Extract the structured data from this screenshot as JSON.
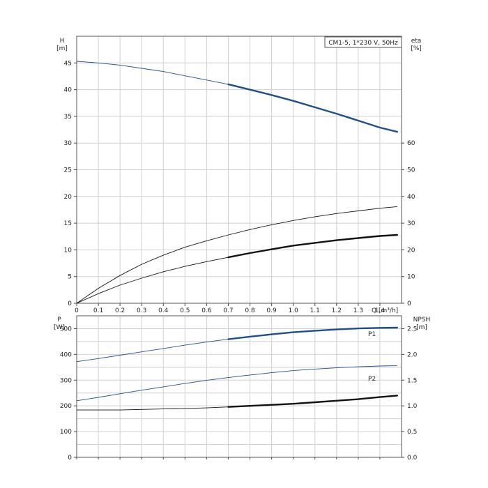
{
  "chart_data": [
    {
      "type": "line",
      "model_label": "CM1-5, 1*230 V, 50Hz",
      "ylabel_left": "H",
      "ylabel_left_unit": "[m]",
      "ylabel_right": "eta",
      "ylabel_right_unit": "[%]",
      "xlabel": "Q [m³/h]",
      "xlim": [
        0,
        1.5
      ],
      "ylim_left": [
        0,
        50
      ],
      "ylim_right": [
        0,
        100
      ],
      "x_ticks": [
        "0",
        "0.1",
        "0.2",
        "0.3",
        "0.4",
        "0.5",
        "0.6",
        "0.7",
        "0.8",
        "0.9",
        "1.0",
        "1.1",
        "1.2",
        "1.3",
        "1.4"
      ],
      "y_left_ticks": [
        "0",
        "5",
        "10",
        "15",
        "20",
        "25",
        "30",
        "35",
        "40",
        "45"
      ],
      "y_right_ticks": [
        "0",
        "10",
        "20",
        "30",
        "40",
        "50",
        "60"
      ],
      "grid": true,
      "series": [
        {
          "axis": "left",
          "color": "#1f4e8c",
          "x": [
            0,
            0.1,
            0.2,
            0.3,
            0.4,
            0.5,
            0.6,
            0.7,
            0.8,
            0.9,
            1.0,
            1.1,
            1.2,
            1.3,
            1.4,
            1.48
          ],
          "y": [
            45.3,
            45.0,
            44.6,
            44.0,
            43.4,
            42.6,
            41.8,
            41.0,
            40.0,
            39.0,
            37.9,
            36.7,
            35.5,
            34.2,
            32.9,
            32.1
          ],
          "bold_from": 0.7
        },
        {
          "axis": "left",
          "color": "#111111",
          "x": [
            0,
            0.1,
            0.2,
            0.3,
            0.4,
            0.5,
            0.6,
            0.7,
            0.8,
            0.9,
            1.0,
            1.1,
            1.2,
            1.3,
            1.4,
            1.48
          ],
          "y": [
            0,
            2.8,
            5.2,
            7.3,
            9.0,
            10.5,
            11.7,
            12.8,
            13.8,
            14.7,
            15.5,
            16.2,
            16.8,
            17.3,
            17.8,
            18.1
          ],
          "bold_from": null
        },
        {
          "axis": "left",
          "color": "#111111",
          "x": [
            0,
            0.1,
            0.2,
            0.3,
            0.4,
            0.5,
            0.6,
            0.7,
            0.8,
            0.9,
            1.0,
            1.1,
            1.2,
            1.3,
            1.4,
            1.48
          ],
          "y": [
            0,
            1.8,
            3.4,
            4.7,
            5.9,
            6.9,
            7.8,
            8.6,
            9.4,
            10.1,
            10.8,
            11.3,
            11.8,
            12.2,
            12.6,
            12.8
          ],
          "bold_from": 0.7
        }
      ]
    },
    {
      "type": "line",
      "ylabel_left": "P",
      "ylabel_left_unit": "[W]",
      "ylabel_right": "NPSH",
      "ylabel_right_unit": "[m]",
      "xlim": [
        0,
        1.5
      ],
      "ylim_left": [
        0,
        550
      ],
      "ylim_right": [
        0,
        2.75
      ],
      "y_left_ticks": [
        "0",
        "100",
        "200",
        "300",
        "400",
        "500"
      ],
      "y_right_ticks": [
        "0.0",
        "0.5",
        "1.0",
        "1.5",
        "2.0",
        "2.5"
      ],
      "grid": true,
      "series": [
        {
          "name": "P1",
          "axis": "left",
          "color": "#1f4e8c",
          "x": [
            0,
            0.1,
            0.2,
            0.3,
            0.4,
            0.5,
            0.6,
            0.7,
            0.8,
            0.9,
            1.0,
            1.1,
            1.2,
            1.3,
            1.4,
            1.48
          ],
          "y": [
            372,
            384,
            397,
            410,
            423,
            436,
            448,
            459,
            469,
            478,
            486,
            492,
            497,
            501,
            503,
            504
          ],
          "bold_from": 0.7
        },
        {
          "name": "P2",
          "axis": "left",
          "color": "#1f4e8c",
          "x": [
            0,
            0.1,
            0.2,
            0.3,
            0.4,
            0.5,
            0.6,
            0.7,
            0.8,
            0.9,
            1.0,
            1.1,
            1.2,
            1.3,
            1.4,
            1.48
          ],
          "y": [
            220,
            233,
            247,
            261,
            274,
            287,
            299,
            310,
            320,
            329,
            337,
            343,
            348,
            352,
            355,
            356
          ],
          "bold_from": null
        },
        {
          "axis": "right",
          "color": "#111111",
          "x": [
            0,
            0.1,
            0.2,
            0.3,
            0.4,
            0.5,
            0.6,
            0.7,
            0.8,
            0.9,
            1.0,
            1.1,
            1.2,
            1.3,
            1.4,
            1.48
          ],
          "y": [
            0.92,
            0.92,
            0.92,
            0.93,
            0.94,
            0.95,
            0.96,
            0.98,
            1.0,
            1.02,
            1.04,
            1.07,
            1.1,
            1.13,
            1.17,
            1.2
          ],
          "bold_from": 0.7
        }
      ]
    }
  ]
}
